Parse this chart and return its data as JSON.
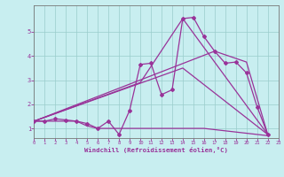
{
  "xlabel": "Windchill (Refroidissement éolien,°C)",
  "xlim": [
    0,
    23
  ],
  "ylim": [
    0.6,
    6.1
  ],
  "yticks": [
    1,
    2,
    3,
    4,
    5
  ],
  "xticks": [
    0,
    1,
    2,
    3,
    4,
    5,
    6,
    7,
    8,
    9,
    10,
    11,
    12,
    13,
    14,
    15,
    16,
    17,
    18,
    19,
    20,
    21,
    22,
    23
  ],
  "bg_color": "#c8eef0",
  "line_color": "#993399",
  "grid_color": "#99cccc",
  "series0_x": [
    0,
    1,
    2,
    3,
    4,
    5,
    6,
    7,
    8,
    9,
    10,
    11,
    12,
    13,
    14,
    15,
    16,
    17,
    18,
    19,
    20,
    21,
    22
  ],
  "series0_y": [
    1.3,
    1.3,
    1.4,
    1.35,
    1.3,
    1.2,
    1.0,
    1.3,
    0.75,
    1.75,
    3.65,
    3.7,
    2.4,
    2.6,
    5.55,
    5.6,
    4.8,
    4.2,
    3.7,
    3.75,
    3.3,
    1.9,
    0.75
  ],
  "series1_x": [
    0,
    10,
    14,
    22
  ],
  "series1_y": [
    1.3,
    2.9,
    5.55,
    0.75
  ],
  "series2_x": [
    0,
    14,
    22
  ],
  "series2_y": [
    1.3,
    3.5,
    0.75
  ],
  "series3_x": [
    0,
    17,
    20,
    22
  ],
  "series3_y": [
    1.3,
    4.2,
    3.75,
    0.75
  ],
  "series4_x": [
    0,
    1,
    2,
    3,
    4,
    5,
    6,
    7,
    8,
    9,
    10,
    11,
    12,
    13,
    14,
    15,
    16,
    17,
    18,
    19,
    20,
    21,
    22
  ],
  "series4_y": [
    1.3,
    1.3,
    1.3,
    1.3,
    1.3,
    1.1,
    1.0,
    1.0,
    1.0,
    1.0,
    1.0,
    1.0,
    1.0,
    1.0,
    1.0,
    1.0,
    1.0,
    0.95,
    0.9,
    0.85,
    0.8,
    0.75,
    0.7
  ]
}
